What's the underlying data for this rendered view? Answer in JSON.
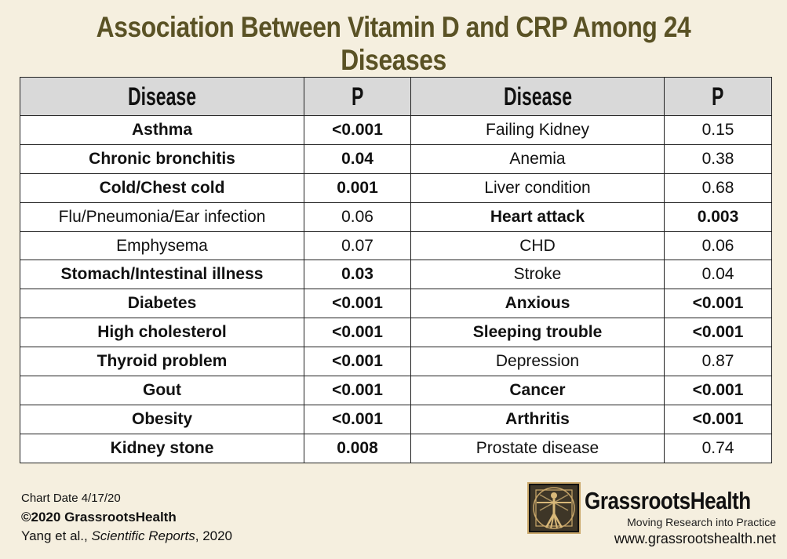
{
  "title": "Association Between Vitamin D and CRP Among 24 Diseases",
  "chart_data": {
    "type": "table",
    "title": "Association Between Vitamin D and CRP Among 24 Diseases",
    "columns": [
      "Disease",
      "P",
      "Disease",
      "P"
    ],
    "rows": [
      [
        {
          "d": "Asthma",
          "b": true
        },
        {
          "p": "<0.001",
          "b": true
        },
        {
          "d": "Failing Kidney",
          "b": false
        },
        {
          "p": "0.15",
          "b": false
        }
      ],
      [
        {
          "d": "Chronic bronchitis",
          "b": true
        },
        {
          "p": "0.04",
          "b": true
        },
        {
          "d": "Anemia",
          "b": false
        },
        {
          "p": "0.38",
          "b": false
        }
      ],
      [
        {
          "d": "Cold/Chest cold",
          "b": true
        },
        {
          "p": "0.001",
          "b": true
        },
        {
          "d": "Liver condition",
          "b": false
        },
        {
          "p": "0.68",
          "b": false
        }
      ],
      [
        {
          "d": "Flu/Pneumonia/Ear infection",
          "b": false
        },
        {
          "p": "0.06",
          "b": false
        },
        {
          "d": "Heart attack",
          "b": true
        },
        {
          "p": "0.003",
          "b": true
        }
      ],
      [
        {
          "d": "Emphysema",
          "b": false
        },
        {
          "p": "0.07",
          "b": false
        },
        {
          "d": "CHD",
          "b": false
        },
        {
          "p": "0.06",
          "b": false
        }
      ],
      [
        {
          "d": "Stomach/Intestinal illness",
          "b": true
        },
        {
          "p": "0.03",
          "b": true
        },
        {
          "d": "Stroke",
          "b": false
        },
        {
          "p": "0.04",
          "b": false
        }
      ],
      [
        {
          "d": "Diabetes",
          "b": true
        },
        {
          "p": "<0.001",
          "b": true
        },
        {
          "d": "Anxious",
          "b": true
        },
        {
          "p": "<0.001",
          "b": true
        }
      ],
      [
        {
          "d": "High cholesterol",
          "b": true
        },
        {
          "p": "<0.001",
          "b": true
        },
        {
          "d": "Sleeping trouble",
          "b": true
        },
        {
          "p": "<0.001",
          "b": true
        }
      ],
      [
        {
          "d": "Thyroid problem",
          "b": true
        },
        {
          "p": "<0.001",
          "b": true
        },
        {
          "d": "Depression",
          "b": false
        },
        {
          "p": "0.87",
          "b": false
        }
      ],
      [
        {
          "d": "Gout",
          "b": true
        },
        {
          "p": "<0.001",
          "b": true
        },
        {
          "d": "Cancer",
          "b": true
        },
        {
          "p": "<0.001",
          "b": true
        }
      ],
      [
        {
          "d": "Obesity",
          "b": true
        },
        {
          "p": "<0.001",
          "b": true
        },
        {
          "d": "Arthritis",
          "b": true
        },
        {
          "p": "<0.001",
          "b": true
        }
      ],
      [
        {
          "d": "Kidney stone",
          "b": true
        },
        {
          "p": "0.008",
          "b": true
        },
        {
          "d": "Prostate disease",
          "b": false
        },
        {
          "p": "0.74",
          "b": false
        }
      ]
    ]
  },
  "footer": {
    "chart_date": "Chart Date 4/17/20",
    "copyright": "©2020 GrassrootsHealth",
    "citation_authors": "Yang et al., ",
    "citation_journal": "Scientific Reports",
    "citation_year": ", 2020"
  },
  "brand": {
    "name": "GrassrootsHealth",
    "tagline": "Moving Research into Practice",
    "website": "www.grassrootshealth.net"
  }
}
